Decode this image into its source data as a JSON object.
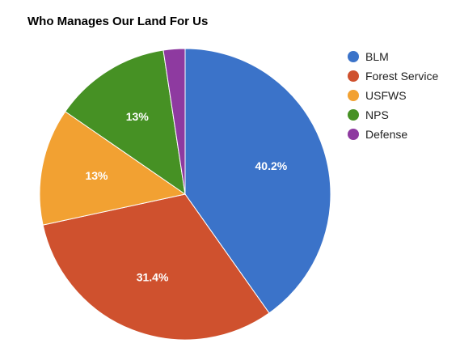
{
  "chart_data": {
    "type": "pie",
    "title": "Who Manages Our Land For Us",
    "legend_position": "right",
    "slices": [
      {
        "name": "BLM",
        "value": 40.2,
        "label": "40.2%",
        "color": "#3b73c9"
      },
      {
        "name": "Forest Service",
        "value": 31.4,
        "label": "31.4%",
        "color": "#cf512e"
      },
      {
        "name": "USFWS",
        "value": 13.0,
        "label": "13%",
        "color": "#f2a132"
      },
      {
        "name": "NPS",
        "value": 13.0,
        "label": "13%",
        "color": "#469124"
      },
      {
        "name": "Defense",
        "value": 2.4,
        "label": "",
        "color": "#8e3aa0"
      }
    ]
  }
}
